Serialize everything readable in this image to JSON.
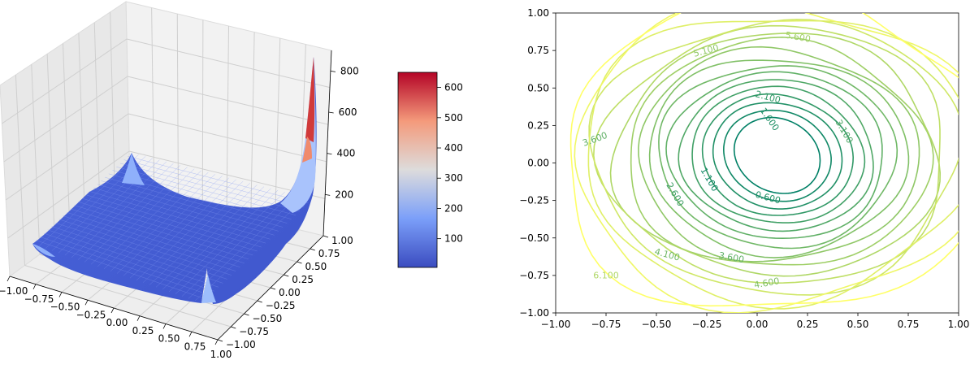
{
  "chart_data": [
    {
      "type": "surface3d",
      "colormap": "coolwarm",
      "x_ticks": [
        "−1.00",
        "−0.75",
        "−0.50",
        "−0.25",
        "0.00",
        "0.25",
        "0.50",
        "0.75",
        "1.00"
      ],
      "y_ticks": [
        "−1.00",
        "−0.75",
        "−0.50",
        "−0.25",
        "0.00",
        "0.25",
        "0.50",
        "0.75",
        "1.00"
      ],
      "z_ticks": [
        "200",
        "400",
        "600",
        "800"
      ],
      "zlim": [
        0,
        900
      ],
      "colorbar": {
        "ticks": [
          "100",
          "200",
          "300",
          "400",
          "500",
          "600"
        ],
        "range": [
          5,
          650
        ]
      },
      "grid": true
    },
    {
      "type": "contour",
      "colormap": "summer",
      "xlim": [
        -1,
        1
      ],
      "ylim": [
        -1,
        1
      ],
      "x_ticks": [
        "−1.00",
        "−0.75",
        "−0.50",
        "−0.25",
        "0.00",
        "0.25",
        "0.50",
        "0.75",
        "1.00"
      ],
      "y_ticks": [
        "−1.00",
        "−0.75",
        "−0.50",
        "−0.25",
        "0.00",
        "0.25",
        "0.50",
        "0.75",
        "1.00"
      ],
      "levels": [
        0.6,
        1.1,
        1.6,
        2.1,
        2.6,
        3.1,
        3.6,
        4.1,
        4.6,
        5.1,
        5.6,
        6.1,
        6.6,
        7.1,
        7.6,
        8.1,
        8.6
      ],
      "center": [
        0.1,
        0.05
      ],
      "contour_labels": [
        "0.600",
        "1.100",
        "1.600",
        "2.100",
        "2.600",
        "3.100",
        "3.600",
        "3.600",
        "4.100",
        "4.600",
        "5.100",
        "5.600",
        "6.100"
      ]
    }
  ]
}
